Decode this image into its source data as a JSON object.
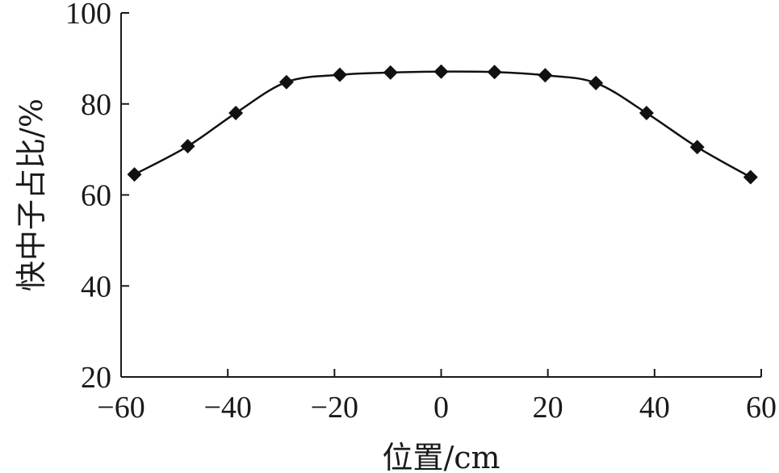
{
  "chart_data": {
    "type": "line",
    "title": "",
    "xlabel": "位置/cm",
    "ylabel": "快中子占比/%",
    "xlim": [
      -60,
      60
    ],
    "ylim": [
      20,
      100
    ],
    "xticks": [
      -60,
      -40,
      -20,
      0,
      20,
      40,
      60
    ],
    "yticks": [
      20,
      40,
      60,
      80,
      100
    ],
    "xtick_labels": [
      "−60",
      "−40",
      "−20",
      "0",
      "20",
      "40",
      "60"
    ],
    "ytick_labels": [
      "20",
      "40",
      "60",
      "80",
      "100"
    ],
    "grid": false,
    "legend": "none",
    "series": [
      {
        "marker": "diamond",
        "color": "#111111",
        "points": [
          {
            "x": -57.5,
            "y": 64.5
          },
          {
            "x": -47.5,
            "y": 70.7
          },
          {
            "x": -38.5,
            "y": 78.0
          },
          {
            "x": -29.0,
            "y": 84.8
          },
          {
            "x": -19.0,
            "y": 86.4
          },
          {
            "x": -9.5,
            "y": 86.9
          },
          {
            "x": 0.0,
            "y": 87.1
          },
          {
            "x": 10.0,
            "y": 87.0
          },
          {
            "x": 19.5,
            "y": 86.3
          },
          {
            "x": 29.0,
            "y": 84.6
          },
          {
            "x": 38.5,
            "y": 78.0
          },
          {
            "x": 48.0,
            "y": 70.5
          },
          {
            "x": 58.0,
            "y": 63.9
          }
        ]
      }
    ]
  }
}
